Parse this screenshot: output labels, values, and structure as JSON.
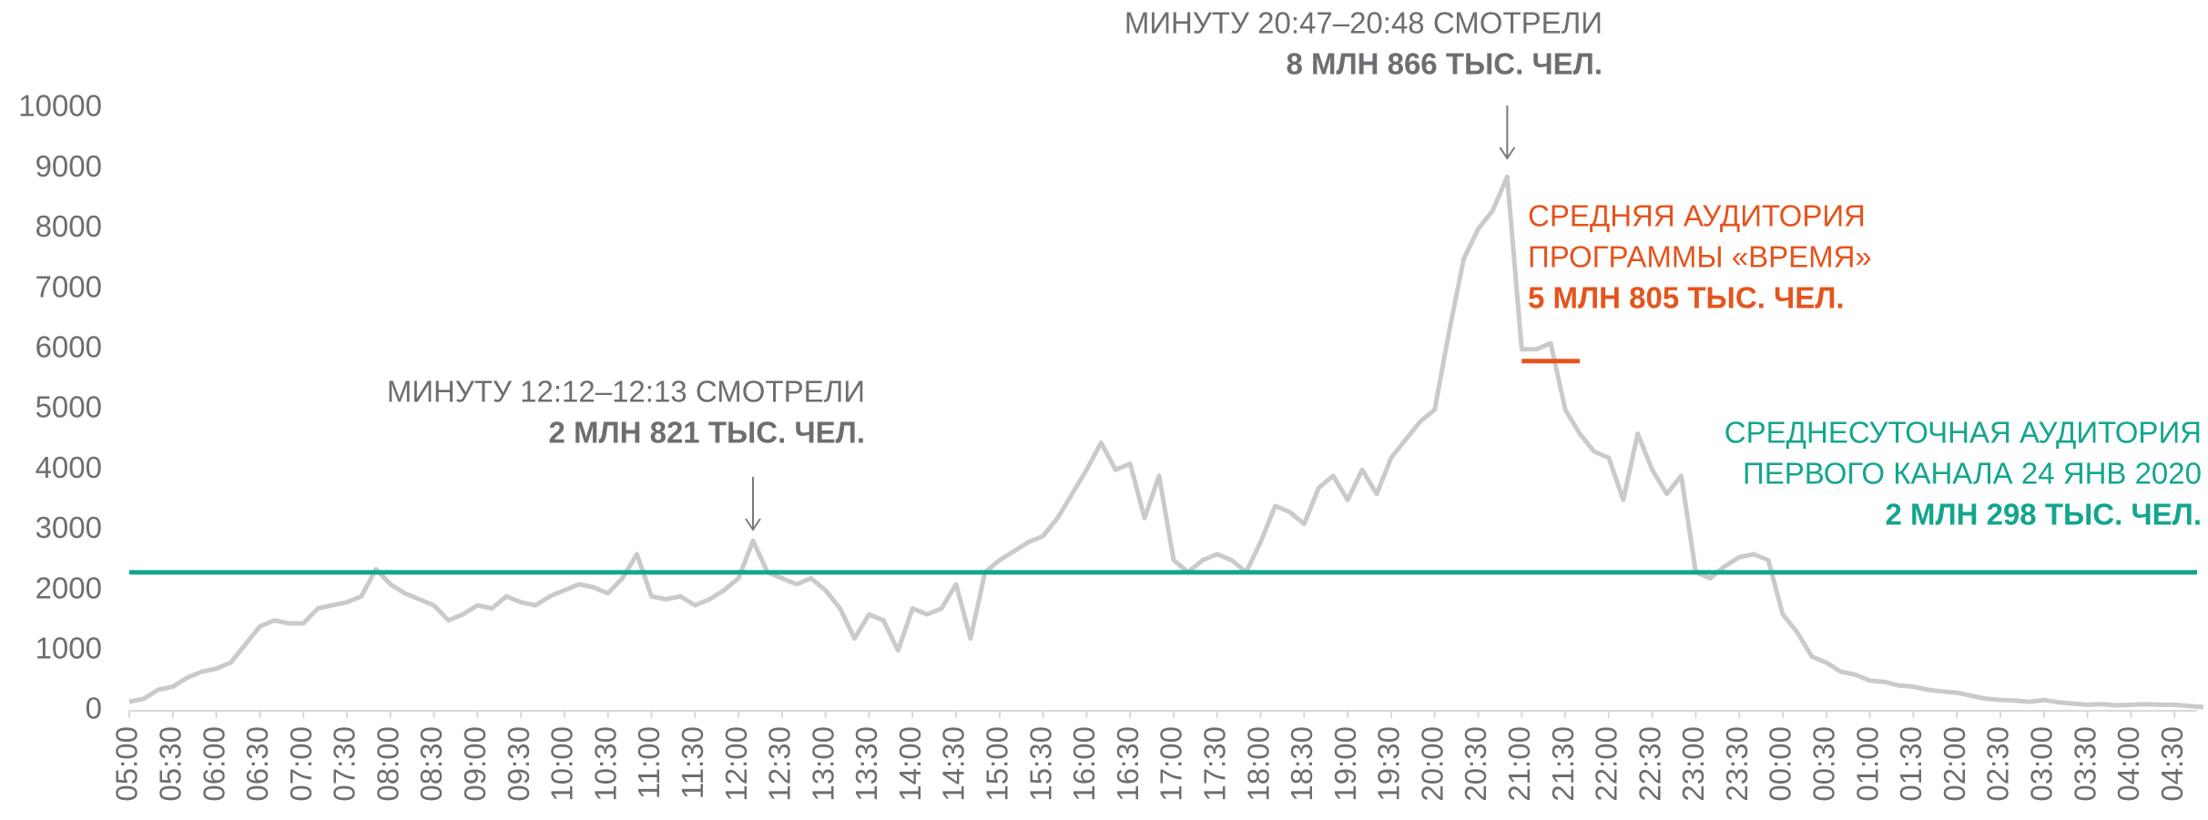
{
  "chart_data": {
    "type": "line",
    "x": [
      "05:00",
      "05:10",
      "05:20",
      "05:30",
      "05:40",
      "05:50",
      "06:00",
      "06:10",
      "06:20",
      "06:30",
      "06:40",
      "06:50",
      "07:00",
      "07:10",
      "07:20",
      "07:30",
      "07:40",
      "07:50",
      "08:00",
      "08:10",
      "08:20",
      "08:30",
      "08:40",
      "08:50",
      "09:00",
      "09:10",
      "09:20",
      "09:30",
      "09:40",
      "09:50",
      "10:00",
      "10:10",
      "10:20",
      "10:30",
      "10:40",
      "10:50",
      "11:00",
      "11:10",
      "11:20",
      "11:30",
      "11:40",
      "11:50",
      "12:00",
      "12:10",
      "12:20",
      "12:30",
      "12:40",
      "12:50",
      "13:00",
      "13:10",
      "13:20",
      "13:30",
      "13:40",
      "13:50",
      "14:00",
      "14:10",
      "14:20",
      "14:30",
      "14:40",
      "14:50",
      "15:00",
      "15:10",
      "15:20",
      "15:30",
      "15:40",
      "15:50",
      "16:00",
      "16:10",
      "16:20",
      "16:30",
      "16:40",
      "16:50",
      "17:00",
      "17:10",
      "17:20",
      "17:30",
      "17:40",
      "17:50",
      "18:00",
      "18:10",
      "18:20",
      "18:30",
      "18:40",
      "18:50",
      "19:00",
      "19:10",
      "19:20",
      "19:30",
      "19:40",
      "19:50",
      "20:00",
      "20:10",
      "20:20",
      "20:30",
      "20:40",
      "20:50",
      "21:00",
      "21:10",
      "21:20",
      "21:30",
      "21:40",
      "21:50",
      "22:00",
      "22:10",
      "22:20",
      "22:30",
      "22:40",
      "22:50",
      "23:00",
      "23:10",
      "23:20",
      "23:30",
      "23:40",
      "23:50",
      "00:00",
      "00:10",
      "00:20",
      "00:30",
      "00:40",
      "00:50",
      "01:00",
      "01:10",
      "01:20",
      "01:30",
      "01:40",
      "01:50",
      "02:00",
      "02:10",
      "02:20",
      "02:30",
      "02:40",
      "02:50",
      "03:00",
      "03:10",
      "03:20",
      "03:30",
      "03:40",
      "03:50",
      "04:00",
      "04:10",
      "04:20",
      "04:30",
      "04:40",
      "04:50"
    ],
    "values": [
      150,
      200,
      350,
      400,
      550,
      650,
      700,
      800,
      1100,
      1400,
      1500,
      1450,
      1450,
      1700,
      1750,
      1800,
      1900,
      2350,
      2100,
      1950,
      1850,
      1750,
      1500,
      1600,
      1750,
      1700,
      1900,
      1800,
      1750,
      1900,
      2000,
      2100,
      2050,
      1950,
      2200,
      2600,
      1900,
      1850,
      1900,
      1750,
      1850,
      2000,
      2200,
      2821,
      2300,
      2200,
      2100,
      2200,
      2000,
      1700,
      1200,
      1600,
      1500,
      1000,
      1700,
      1600,
      1700,
      2100,
      1200,
      2300,
      2500,
      2650,
      2800,
      2900,
      3200,
      3600,
      4000,
      4450,
      4000,
      4100,
      3200,
      3900,
      2500,
      2300,
      2500,
      2600,
      2500,
      2300,
      2800,
      3400,
      3300,
      3100,
      3700,
      3900,
      3500,
      4000,
      3600,
      4200,
      4500,
      4800,
      5000,
      6300,
      7500,
      8000,
      8300,
      8866,
      6000,
      6000,
      6100,
      5000,
      4600,
      4300,
      4200,
      3500,
      4600,
      4000,
      3600,
      3900,
      2300,
      2200,
      2400,
      2550,
      2600,
      2500,
      1600,
      1300,
      900,
      800,
      650,
      600,
      500,
      480,
      420,
      400,
      350,
      320,
      300,
      250,
      200,
      180,
      170,
      150,
      180,
      140,
      120,
      100,
      110,
      90,
      100,
      110,
      100,
      100,
      80,
      60
    ],
    "color": "#cacaca",
    "xticks": [
      "05:00",
      "05:30",
      "06:00",
      "06:30",
      "07:00",
      "07:30",
      "08:00",
      "08:30",
      "09:00",
      "09:30",
      "10:00",
      "10:30",
      "11:00",
      "11:30",
      "12:00",
      "12:30",
      "13:00",
      "13:30",
      "14:00",
      "14:30",
      "15:00",
      "15:30",
      "16:00",
      "16:30",
      "17:00",
      "17:30",
      "18:00",
      "18:30",
      "19:00",
      "19:30",
      "20:00",
      "20:30",
      "21:00",
      "21:30",
      "22:00",
      "22:30",
      "23:00",
      "23:30",
      "00:00",
      "00:30",
      "01:00",
      "01:30",
      "02:00",
      "02:30",
      "03:00",
      "03:30",
      "04:00",
      "04:30"
    ],
    "ylim": [
      0,
      10000
    ],
    "yticks": [
      0,
      1000,
      2000,
      3000,
      4000,
      5000,
      6000,
      7000,
      8000,
      9000,
      10000
    ],
    "reference_lines": [
      {
        "value": 2298,
        "color": "#14a58e",
        "label_lines": [
          "СРЕДНЕСУТОЧНАЯ АУДИТОРИЯ",
          "ПЕРВОГО КАНАЛА 24 ЯНВ 2020",
          "2 МЛН 298 ТЫС. ЧЕЛ."
        ]
      },
      {
        "value": 5805,
        "color": "#e5541d",
        "x_range": [
          "21:00",
          "21:40"
        ],
        "label_lines": [
          "СРЕДНЯЯ АУДИТОРИЯ",
          "ПРОГРАММЫ «ВРЕМЯ»",
          "5 МЛН 805 ТЫС. ЧЕЛ."
        ]
      }
    ],
    "annotations": [
      {
        "at": "12:10",
        "lines": [
          "МИНУТУ 12:12–12:13 СМОТРЕЛИ",
          "2 МЛН 821 ТЫС. ЧЕЛ."
        ]
      },
      {
        "at": "20:50",
        "lines": [
          "МИНУТУ 20:47–20:48 СМОТРЕЛИ",
          "8 МЛН 866 ТЫС. ЧЕЛ."
        ]
      }
    ]
  }
}
